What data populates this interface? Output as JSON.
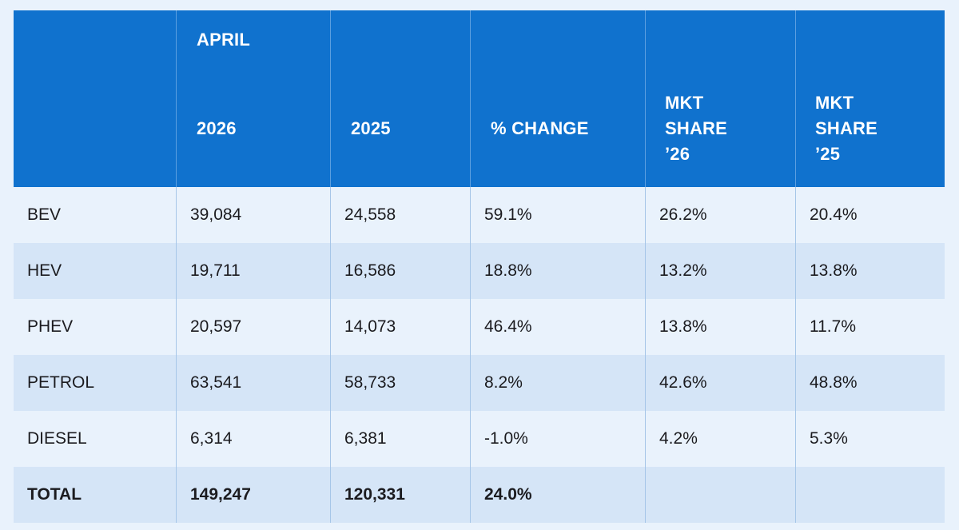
{
  "header": {
    "group_label": "APRIL",
    "col_2026": "2026",
    "col_2025": "2025",
    "col_change": "% CHANGE",
    "mkt26": [
      "MKT",
      "SHARE",
      "’26"
    ],
    "mkt25": [
      "MKT",
      "SHARE",
      "’25"
    ]
  },
  "rows": [
    {
      "label": "BEV",
      "v2026": "39,084",
      "v2025": "24,558",
      "change": "59.1%",
      "share26": "26.2%",
      "share25": "20.4%"
    },
    {
      "label": "HEV",
      "v2026": "19,711",
      "v2025": "16,586",
      "change": "18.8%",
      "share26": "13.2%",
      "share25": "13.8%"
    },
    {
      "label": "PHEV",
      "v2026": "20,597",
      "v2025": "14,073",
      "change": "46.4%",
      "share26": "13.8%",
      "share25": "11.7%"
    },
    {
      "label": "PETROL",
      "v2026": "63,541",
      "v2025": "58,733",
      "change": "8.2%",
      "share26": "42.6%",
      "share25": "48.8%"
    },
    {
      "label": "DIESEL",
      "v2026": "6,314",
      "v2025": "6,381",
      "change": "-1.0%",
      "share26": "4.2%",
      "share25": "5.3%"
    },
    {
      "label": "TOTAL",
      "v2026": "149,247",
      "v2025": "120,331",
      "change": "24.0%",
      "share26": "",
      "share25": ""
    }
  ],
  "chart_data": {
    "type": "table",
    "title": "APRIL",
    "columns": [
      "",
      "2026",
      "2025",
      "% CHANGE",
      "MKT SHARE ’26",
      "MKT SHARE ’25"
    ],
    "rows": [
      [
        "BEV",
        "39,084",
        "24,558",
        "59.1%",
        "26.2%",
        "20.4%"
      ],
      [
        "HEV",
        "19,711",
        "16,586",
        "18.8%",
        "13.2%",
        "13.8%"
      ],
      [
        "PHEV",
        "20,597",
        "14,073",
        "46.4%",
        "13.8%",
        "11.7%"
      ],
      [
        "PETROL",
        "63,541",
        "58,733",
        "8.2%",
        "42.6%",
        "48.8%"
      ],
      [
        "DIESEL",
        "6,314",
        "6,381",
        "-1.0%",
        "4.2%",
        "5.3%"
      ],
      [
        "TOTAL",
        "149,247",
        "120,331",
        "24.0%",
        "",
        ""
      ]
    ]
  },
  "colors": {
    "header_bg": "#1072ce",
    "header_text": "#ffffff",
    "row_light": "#e9f2fc",
    "row_dark": "#d5e5f7",
    "body_text": "#1b1b1f"
  }
}
